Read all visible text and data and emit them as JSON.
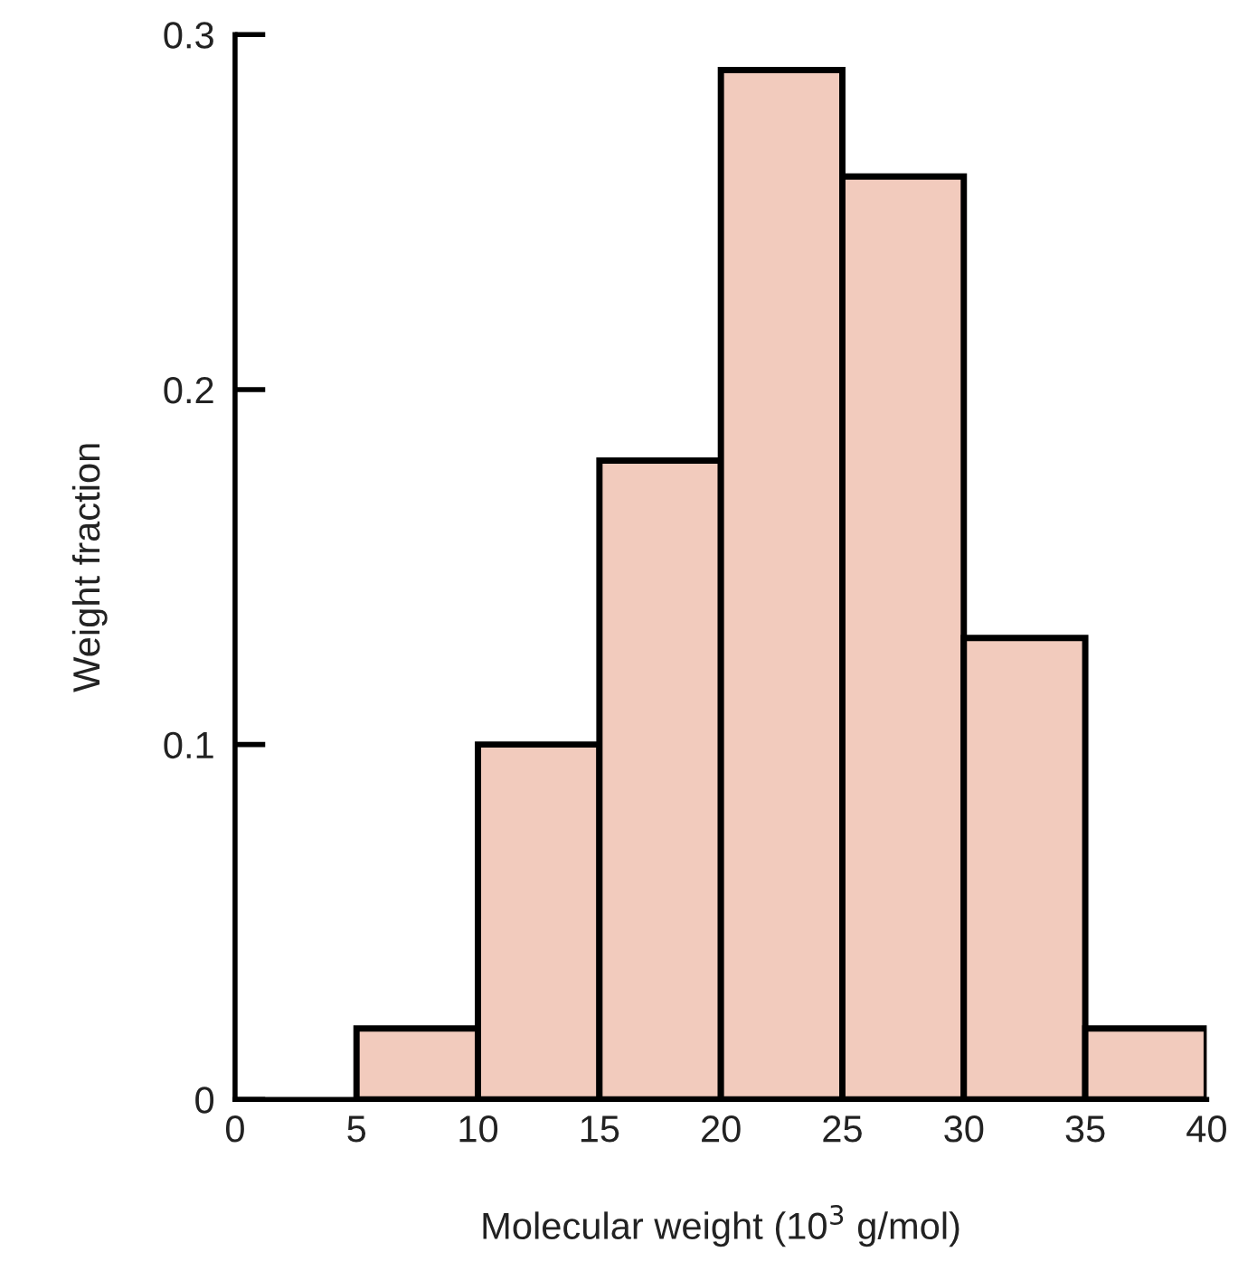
{
  "chart_data": {
    "type": "histogram",
    "xlabel": "Molecular weight (10$^{3}$ g/mol)",
    "ylabel": "Weight fraction",
    "bins": [
      5,
      10,
      15,
      20,
      25,
      30,
      35,
      40
    ],
    "values": [
      0.02,
      0.1,
      0.18,
      0.29,
      0.26,
      0.13,
      0.02
    ],
    "color": "#f2cbbd",
    "xlim": [
      0,
      40
    ],
    "xticks": [
      0,
      5,
      10,
      15,
      20,
      25,
      30,
      35,
      40
    ],
    "ylim": [
      0,
      0.3
    ],
    "yticks": [
      0,
      0.1,
      0.2,
      0.3
    ],
    "grid": false
  }
}
